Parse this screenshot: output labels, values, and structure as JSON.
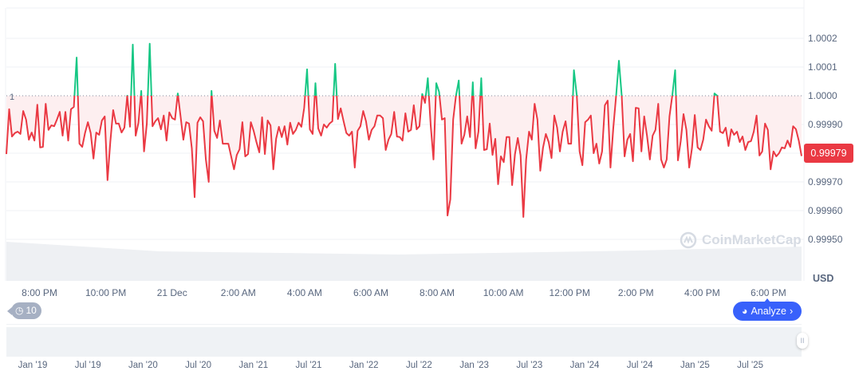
{
  "chart_data": {
    "type": "line",
    "title": "",
    "currency": "USD",
    "baseline": 1.0,
    "baseline_label": "1",
    "current_price": "0.99979",
    "ylim": [
      0.99945,
      1.00025
    ],
    "y_ticks": [
      "1.0002",
      "1.0001",
      "1.0000",
      "0.99990",
      "0.99970",
      "0.99960",
      "0.99950"
    ],
    "y_tick_values": [
      1.0002,
      1.0001,
      1.0,
      0.9999,
      0.9997,
      0.9996,
      0.9995
    ],
    "x_ticks": [
      "8:00 PM",
      "10:00 PM",
      "21 Dec",
      "2:00 AM",
      "4:00 AM",
      "6:00 AM",
      "8:00 AM",
      "10:00 AM",
      "12:00 PM",
      "2:00 PM",
      "4:00 PM",
      "6:00 PM"
    ],
    "x_range_hours": [
      -1,
      23
    ],
    "navigator_ticks": [
      "Jan '19",
      "Jul '19",
      "Jan '20",
      "Jul '20",
      "Jan '21",
      "Jul '21",
      "Jan '22",
      "Jul '22",
      "Jan '23",
      "Jul '23",
      "Jan '24",
      "Jul '24",
      "Jan '25",
      "Jul '25"
    ],
    "colors": {
      "up": "#16c784",
      "down": "#ea3943",
      "fill": "#fdeff0",
      "grid": "#eff2f5"
    },
    "values": [
      0.999797,
      0.999953,
      0.999858,
      0.99987,
      0.999875,
      0.999867,
      0.999947,
      0.999917,
      0.999847,
      0.999872,
      0.999844,
      0.999969,
      0.99982,
      0.999822,
      0.999972,
      0.999881,
      0.999897,
      0.999894,
      0.999917,
      0.999944,
      0.999861,
      0.999944,
      0.999844,
      0.999953,
      0.999961,
      1.000133,
      0.999833,
      0.999822,
      0.99987,
      0.999908,
      0.99987,
      0.999781,
      0.999872,
      0.999864,
      0.999914,
      0.999928,
      0.999706,
      0.999839,
      0.99995,
      0.999903,
      0.999903,
      0.999872,
      0.999889,
      1.0,
      0.999892,
      1.000178,
      0.999861,
      0.999906,
      1.000017,
      0.999806,
      0.999903,
      1.000181,
      0.999894,
      0.999911,
      0.999922,
      0.999883,
      0.999931,
      0.999844,
      0.999942,
      0.999922,
      0.999917,
      1.000008,
      0.999928,
      0.999847,
      0.999908,
      0.999903,
      0.999817,
      0.999647,
      0.999906,
      0.999925,
      0.999911,
      0.999778,
      0.9997,
      1.000017,
      0.999878,
      0.999853,
      0.999914,
      0.999833,
      0.999833,
      0.999833,
      0.999789,
      0.999744,
      0.999794,
      0.999814,
      0.999908,
      0.999789,
      0.999797,
      0.999908,
      0.999878,
      0.999839,
      0.999803,
      0.999925,
      0.999797,
      0.999914,
      0.999897,
      0.999744,
      0.99985,
      0.999892,
      0.999856,
      0.999894,
      0.99983,
      0.999906,
      0.999867,
      0.999881,
      0.999906,
      0.999892,
      0.999958,
      1.000092,
      0.999883,
      0.999867,
      1.000044,
      0.999886,
      0.999861,
      0.9999,
      0.999889,
      0.999903,
      0.999911,
      1.000111,
      0.999919,
      0.999956,
      0.999911,
      0.99987,
      0.999861,
      0.999875,
      0.99975,
      0.999878,
      0.999894,
      0.999947,
      0.999911,
      0.999847,
      0.999881,
      0.999894,
      0.999931,
      0.999931,
      0.999922,
      0.999811,
      0.999847,
      0.999867,
      0.999944,
      0.999858,
      0.999856,
      0.999844,
      0.999939,
      0.999875,
      0.999881,
      0.999967,
      0.999883,
      0.999894,
      1.000006,
      0.999975,
      1.000061,
      0.999897,
      0.999778,
      1.000044,
      1.000014,
      0.999917,
      0.999922,
      0.999583,
      0.999639,
      0.999917,
      1.0,
      1.000053,
      0.999833,
      0.999864,
      0.999928,
      0.999856,
      1.000047,
      0.999817,
      0.999875,
      1.000061,
      0.999811,
      0.999814,
      0.999903,
      0.999794,
      0.99985,
      0.999692,
      0.999789,
      0.999769,
      0.999856,
      0.999856,
      0.999689,
      0.999797,
      0.999853,
      0.999792,
      0.999578,
      0.999778,
      0.999875,
      0.999847,
      0.999972,
      0.999917,
      0.999739,
      0.99982,
      0.999867,
      0.999839,
      0.999783,
      0.999931,
      0.999889,
      0.999806,
      0.999875,
      0.999911,
      0.999833,
      0.999833,
      1.000089,
      1.0,
      0.999806,
      0.999758,
      0.999908,
      0.999917,
      0.999931,
      0.9998,
      0.999833,
      0.999764,
      0.999806,
      0.999967,
      0.999983,
      0.99975,
      0.999889,
      1.0,
      1.000122,
      1.0,
      0.999789,
      0.999847,
      0.999867,
      0.999772,
      0.999958,
      0.999956,
      0.999806,
      0.999928,
      0.999861,
      0.999778,
      0.999861,
      0.999881,
      0.999972,
      0.999778,
      0.99975,
      0.999778,
      0.999928,
      1.0,
      1.000089,
      0.999775,
      0.999842,
      0.999936,
      0.999881,
      0.99975,
      0.999817,
      0.999933,
      0.99982,
      0.999811,
      0.999847,
      0.999917,
      0.999894,
      0.999878,
      1.000008,
      1.0,
      0.999875,
      0.99987,
      0.999889,
      0.999825,
      0.999883,
      0.999864,
      0.999875,
      0.999839,
      0.999858,
      0.999811,
      0.999839,
      0.999842,
      0.999875,
      0.999931,
      0.999792,
      0.999806,
      0.999903,
      0.999881,
      0.999744,
      0.999806,
      0.999789,
      0.9998,
      0.99982,
      0.999817,
      0.999844,
      0.999822,
      0.999894,
      0.999883,
      0.999844,
      0.99979
    ]
  },
  "controls": {
    "history_count": "10",
    "analyze_label": "Analyze",
    "analyze_chevron": "›",
    "handle_glyph": "II"
  },
  "watermark": "CoinMarketCap"
}
